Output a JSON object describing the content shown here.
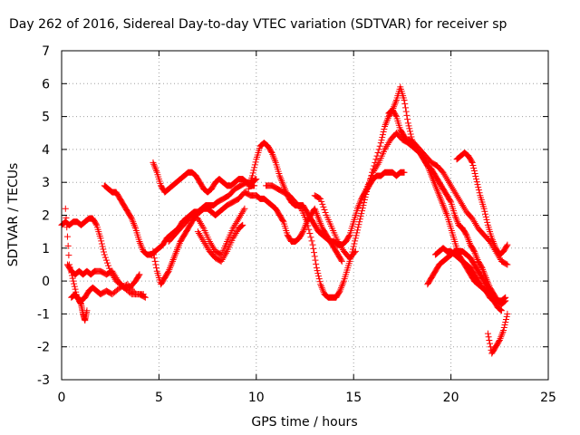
{
  "chart_data": {
    "type": "scatter",
    "title": "Day 262 of 2016, Sidereal Day-to-day VTEC variation (SDTVAR) for receiver sp",
    "xlabel": "GPS time / hours",
    "ylabel": "SDTVAR / TECUs",
    "xlim": [
      0,
      25
    ],
    "ylim": [
      -3,
      7
    ],
    "xticks": [
      0,
      5,
      10,
      15,
      20,
      25
    ],
    "yticks": [
      -3,
      -2,
      -1,
      0,
      1,
      2,
      3,
      4,
      5,
      6,
      7
    ],
    "grid": true,
    "legend": "none",
    "marker": "+",
    "color": "#ff0000",
    "series": [
      {
        "x": [
          0.0,
          0.2,
          0.4,
          0.6,
          0.8,
          1.0,
          1.2,
          1.4,
          1.6,
          1.8,
          2.0,
          2.2,
          2.5,
          2.8,
          3.2,
          3.6,
          4.0,
          4.3
        ],
        "y": [
          1.7,
          1.8,
          1.7,
          1.8,
          1.8,
          1.7,
          1.8,
          1.9,
          1.9,
          1.7,
          1.3,
          0.8,
          0.3,
          0.0,
          -0.2,
          -0.4,
          -0.4,
          -0.5
        ]
      },
      {
        "x": [
          0.2,
          0.4,
          0.6,
          0.8,
          1.0,
          1.2,
          1.4,
          1.6,
          1.8,
          2.0,
          2.3,
          2.6,
          3.0,
          3.4,
          3.8,
          4.2
        ],
        "y": [
          2.2,
          0.5,
          0.0,
          -0.5,
          -0.6,
          -0.5,
          -0.3,
          -0.2,
          -0.3,
          -0.4,
          -0.3,
          -0.4,
          -0.2,
          -0.1,
          -0.4,
          -0.4
        ]
      },
      {
        "x": [
          0.3,
          0.5,
          0.7,
          0.9,
          1.1,
          1.3,
          1.5,
          1.7,
          2.0,
          2.3,
          2.6,
          2.9,
          3.2,
          3.5,
          3.8,
          4.0
        ],
        "y": [
          0.5,
          0.3,
          0.2,
          0.3,
          0.2,
          0.3,
          0.2,
          0.3,
          0.3,
          0.2,
          0.3,
          0.0,
          -0.2,
          -0.2,
          0.0,
          0.2
        ]
      },
      {
        "x": [
          0.5,
          0.7,
          0.9,
          1.0,
          1.1,
          1.2,
          1.3
        ],
        "y": [
          -0.5,
          -0.4,
          -0.6,
          -0.7,
          -1.0,
          -1.2,
          -0.9
        ]
      },
      {
        "x": [
          2.2,
          2.4,
          2.6,
          2.8,
          3.0,
          3.2,
          3.4,
          3.6,
          3.8,
          4.0,
          4.2,
          4.4,
          4.6,
          4.8,
          5.0,
          5.2,
          5.4,
          5.6,
          5.8,
          6.0,
          6.2,
          6.4,
          6.6,
          6.8,
          7.0,
          7.2,
          7.4,
          7.6,
          7.8,
          8.0,
          8.3,
          8.6,
          8.9,
          9.2,
          9.5,
          9.8,
          10.0
        ],
        "y": [
          2.9,
          2.8,
          2.7,
          2.7,
          2.5,
          2.3,
          2.1,
          1.9,
          1.6,
          1.2,
          0.9,
          0.8,
          0.8,
          0.9,
          1.0,
          1.1,
          1.3,
          1.4,
          1.5,
          1.6,
          1.8,
          1.9,
          2.0,
          2.1,
          2.1,
          2.2,
          2.3,
          2.3,
          2.3,
          2.4,
          2.5,
          2.6,
          2.8,
          2.9,
          3.0,
          3.0,
          3.1
        ]
      },
      {
        "x": [
          4.7,
          4.9,
          5.1,
          5.3,
          5.5,
          5.7,
          5.9,
          6.1,
          6.3,
          6.5,
          6.7,
          6.9,
          7.1,
          7.3,
          7.5,
          7.7,
          7.9,
          8.1,
          8.3,
          8.5,
          8.7,
          8.9,
          9.1,
          9.3,
          9.5,
          9.7,
          9.9
        ],
        "y": [
          3.6,
          3.3,
          2.9,
          2.7,
          2.8,
          2.9,
          3.0,
          3.1,
          3.2,
          3.3,
          3.3,
          3.2,
          3.0,
          2.8,
          2.7,
          2.8,
          3.0,
          3.1,
          3.0,
          2.9,
          2.9,
          3.0,
          3.1,
          3.1,
          3.0,
          2.9,
          2.9
        ]
      },
      {
        "x": [
          4.7,
          4.9,
          5.1,
          5.3,
          5.5,
          5.7,
          5.9,
          6.1,
          6.3,
          6.5,
          6.7,
          6.9,
          7.1,
          7.3,
          7.5,
          7.7,
          7.9,
          8.1,
          8.3,
          8.5,
          8.8,
          9.1,
          9.4,
          9.7,
          10.0
        ],
        "y": [
          0.9,
          0.3,
          -0.1,
          0.1,
          0.3,
          0.6,
          0.9,
          1.2,
          1.4,
          1.6,
          1.8,
          2.0,
          2.1,
          2.2,
          2.2,
          2.1,
          2.0,
          2.1,
          2.2,
          2.3,
          2.4,
          2.5,
          2.7,
          2.6,
          2.6
        ]
      },
      {
        "x": [
          5.5,
          5.8,
          6.1,
          6.4,
          6.7,
          7.0,
          7.3,
          7.6,
          7.9,
          8.2,
          8.5,
          8.8,
          9.1,
          9.4
        ],
        "y": [
          1.2,
          1.4,
          1.6,
          1.8,
          2.0,
          1.9,
          1.6,
          1.2,
          0.9,
          0.8,
          1.2,
          1.6,
          1.9,
          2.2
        ]
      },
      {
        "x": [
          7.0,
          7.3,
          7.6,
          7.9,
          8.2,
          8.5,
          8.8,
          9.1,
          9.3
        ],
        "y": [
          1.5,
          1.2,
          0.9,
          0.7,
          0.6,
          0.9,
          1.3,
          1.6,
          1.7
        ]
      },
      {
        "x": [
          9.6,
          9.8,
          10.0,
          10.2,
          10.4,
          10.6,
          10.8,
          11.0,
          11.2,
          11.4,
          11.6,
          11.8,
          12.0,
          12.2,
          12.4,
          12.6,
          12.8,
          13.0,
          13.2,
          13.4,
          13.6,
          13.8,
          14.0,
          14.2,
          14.4,
          14.6,
          14.8,
          15.0,
          15.2,
          15.4,
          15.6,
          15.8,
          16.0,
          16.2,
          16.4,
          16.6,
          16.8,
          17.0,
          17.2,
          17.4,
          17.6
        ],
        "y": [
          2.8,
          3.2,
          3.7,
          4.1,
          4.2,
          4.1,
          3.9,
          3.6,
          3.2,
          2.9,
          2.6,
          2.4,
          2.3,
          2.3,
          2.3,
          2.1,
          1.9,
          1.7,
          1.5,
          1.4,
          1.3,
          1.2,
          1.2,
          1.1,
          1.1,
          1.2,
          1.4,
          1.8,
          2.2,
          2.5,
          2.7,
          2.9,
          3.1,
          3.2,
          3.2,
          3.3,
          3.3,
          3.3,
          3.2,
          3.3,
          3.3
        ]
      },
      {
        "x": [
          10.0,
          10.2,
          10.4,
          10.6,
          10.8,
          11.0,
          11.2,
          11.4,
          11.6,
          11.8,
          12.0,
          12.2,
          12.4,
          12.6,
          12.8,
          13.0,
          13.2,
          13.4,
          13.6,
          13.8,
          14.0,
          14.2,
          14.4
        ],
        "y": [
          2.6,
          2.5,
          2.5,
          2.4,
          2.3,
          2.2,
          2.0,
          1.8,
          1.4,
          1.2,
          1.2,
          1.3,
          1.5,
          1.8,
          2.0,
          2.2,
          1.9,
          1.6,
          1.4,
          1.2,
          1.0,
          0.8,
          0.6
        ]
      },
      {
        "x": [
          10.5,
          10.8,
          11.1,
          11.4,
          11.7,
          12.0,
          12.3,
          12.6,
          12.9,
          13.1,
          13.3,
          13.5,
          13.7,
          13.9,
          14.1,
          14.3,
          14.5,
          14.7,
          14.9,
          15.1,
          15.3,
          15.5,
          15.7,
          16.0,
          16.3,
          16.6,
          16.9,
          17.2,
          17.5,
          17.8
        ],
        "y": [
          2.9,
          2.9,
          2.8,
          2.7,
          2.6,
          2.4,
          2.2,
          1.8,
          1.1,
          0.4,
          -0.1,
          -0.4,
          -0.5,
          -0.5,
          -0.5,
          -0.3,
          0.0,
          0.4,
          0.8,
          1.3,
          1.8,
          2.3,
          2.8,
          3.3,
          3.6,
          4.0,
          4.3,
          4.5,
          4.3,
          4.2
        ]
      },
      {
        "x": [
          13.0,
          13.3,
          13.6,
          13.9,
          14.2,
          14.5,
          14.8,
          15.1
        ],
        "y": [
          2.6,
          2.5,
          2.0,
          1.6,
          1.2,
          0.9,
          0.7,
          0.9
        ]
      },
      {
        "x": [
          15.5,
          15.8,
          16.1,
          16.4,
          16.6,
          16.8,
          17.0,
          17.2,
          17.4,
          17.6,
          17.8,
          18.0,
          18.2,
          18.4,
          18.6,
          18.8,
          19.0,
          19.2,
          19.4,
          19.6,
          19.8,
          20.0,
          20.2,
          20.4,
          20.6,
          20.8,
          21.0,
          21.2,
          21.4,
          21.6,
          21.8,
          22.0,
          22.2,
          22.4,
          22.6,
          22.8
        ],
        "y": [
          2.6,
          3.0,
          3.6,
          4.2,
          4.7,
          5.0,
          5.2,
          5.5,
          5.9,
          5.5,
          4.8,
          4.3,
          4.0,
          3.9,
          3.7,
          3.5,
          3.4,
          3.2,
          3.0,
          2.8,
          2.6,
          2.4,
          2.0,
          1.7,
          1.6,
          1.4,
          1.1,
          0.9,
          0.6,
          0.4,
          0.1,
          -0.2,
          -0.4,
          -0.6,
          -0.6,
          -0.5
        ]
      },
      {
        "x": [
          16.8,
          17.0,
          17.2,
          17.4,
          17.6,
          17.8,
          18.0,
          18.2,
          18.4,
          18.6,
          18.8,
          19.0,
          19.2,
          19.4,
          19.6,
          19.8,
          20.0,
          20.2,
          20.4,
          20.6,
          20.8,
          21.0,
          21.2,
          21.4,
          21.6,
          21.8,
          22.0
        ],
        "y": [
          5.1,
          5.2,
          5.0,
          4.6,
          4.4,
          4.2,
          4.1,
          4.0,
          3.9,
          3.7,
          3.5,
          3.2,
          2.9,
          2.6,
          2.3,
          2.0,
          1.6,
          1.2,
          0.8,
          0.6,
          0.4,
          0.2,
          0.0,
          -0.1,
          -0.2,
          -0.3,
          -0.4
        ]
      },
      {
        "x": [
          17.8,
          18.1,
          18.4,
          18.7,
          19.0,
          19.3,
          19.6,
          19.9,
          20.2,
          20.5,
          20.8,
          21.1,
          21.4,
          21.7,
          22.0,
          22.3,
          22.6,
          22.9
        ],
        "y": [
          4.3,
          4.2,
          4.0,
          3.8,
          3.6,
          3.5,
          3.3,
          3.0,
          2.7,
          2.4,
          2.1,
          1.9,
          1.6,
          1.4,
          1.2,
          0.9,
          0.6,
          0.5
        ]
      },
      {
        "x": [
          18.8,
          19.0,
          19.2,
          19.4,
          19.6,
          19.8,
          20.0,
          20.2,
          20.4,
          20.6,
          20.8,
          21.0,
          21.2,
          21.4,
          21.6,
          21.8,
          22.0,
          22.2,
          22.4,
          22.6,
          22.8
        ],
        "y": [
          -0.1,
          0.1,
          0.3,
          0.5,
          0.6,
          0.7,
          0.8,
          0.9,
          0.9,
          0.9,
          0.8,
          0.7,
          0.5,
          0.3,
          0.1,
          -0.1,
          -0.3,
          -0.5,
          -0.6,
          -0.7,
          -0.6
        ]
      },
      {
        "x": [
          19.2,
          19.4,
          19.6,
          19.8,
          20.0,
          20.2,
          20.4,
          20.6,
          20.8,
          21.0,
          21.2,
          21.4,
          21.6,
          21.8,
          22.0,
          22.2,
          22.4,
          22.6
        ],
        "y": [
          0.8,
          0.9,
          1.0,
          0.9,
          0.9,
          0.8,
          0.7,
          0.6,
          0.5,
          0.4,
          0.2,
          0.0,
          -0.2,
          -0.3,
          -0.5,
          -0.6,
          -0.8,
          -0.9
        ]
      },
      {
        "x": [
          20.3,
          20.5,
          20.7,
          20.9,
          21.1,
          21.3,
          21.5,
          21.7,
          21.9,
          22.1,
          22.3,
          22.5,
          22.7,
          22.9
        ],
        "y": [
          3.7,
          3.8,
          3.9,
          3.8,
          3.6,
          3.1,
          2.6,
          2.2,
          1.7,
          1.3,
          1.0,
          0.8,
          0.9,
          1.1
        ]
      },
      {
        "x": [
          21.9,
          22.1,
          22.3,
          22.5,
          22.7,
          22.9
        ],
        "y": [
          -1.6,
          -2.2,
          -2.0,
          -1.8,
          -1.5,
          -1.0
        ]
      }
    ]
  }
}
